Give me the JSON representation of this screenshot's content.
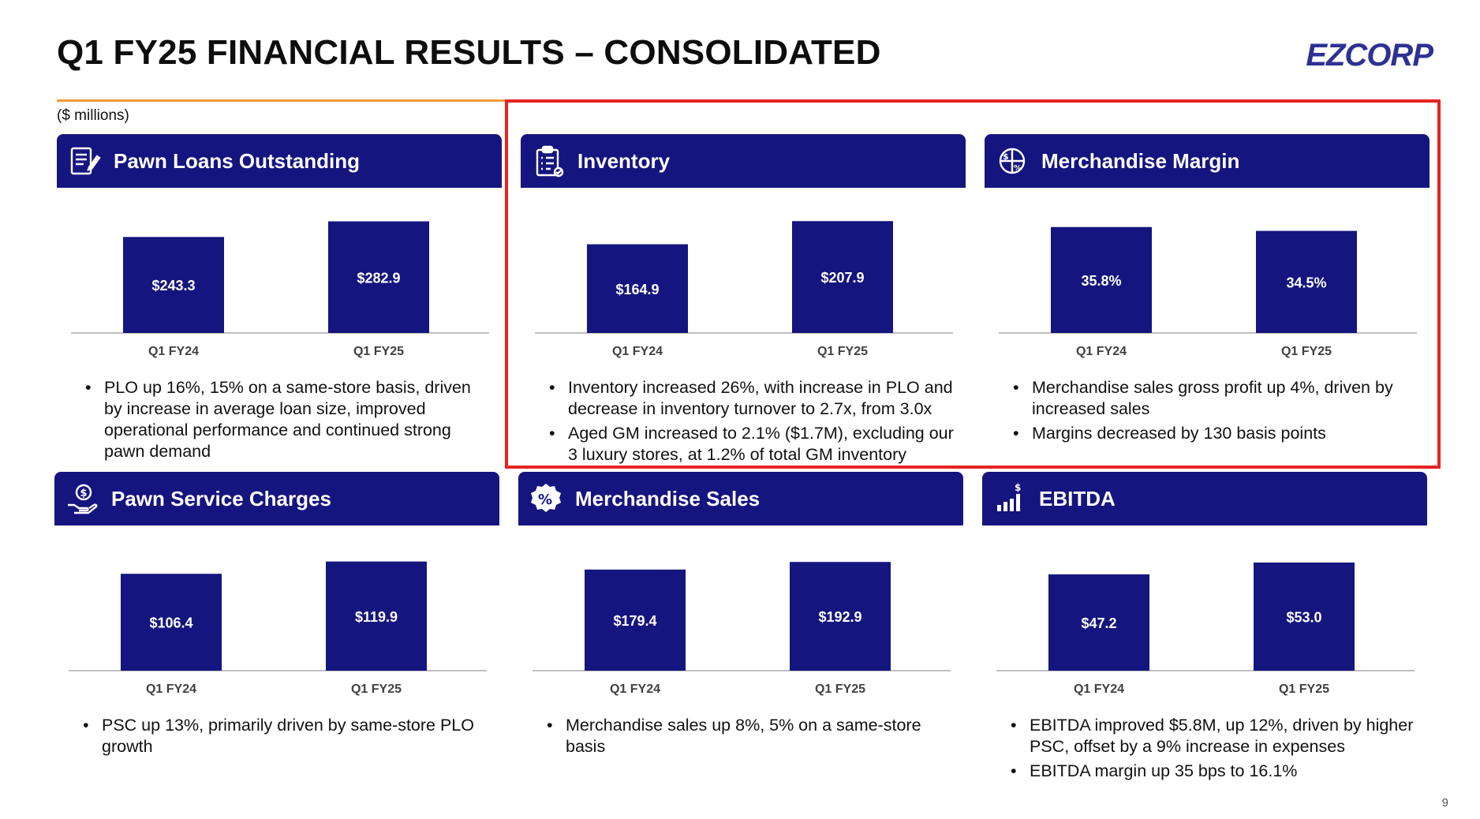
{
  "page": {
    "title": "Q1 FY25 FINANCIAL RESULTS – CONSOLIDATED",
    "logo": "EZCORP",
    "units": "($ millions)",
    "page_number": "9"
  },
  "colors": {
    "bar": "#15157f",
    "banner": "#15157f",
    "highlight": "#e52421",
    "rule": "#f39a3b"
  },
  "panels": [
    {
      "title": "Pawn Loans Outstanding",
      "icon": "loan-document-icon",
      "bullets": [
        "PLO up 16%, 15% on a same-store basis, driven by increase in average loan size, improved operational performance and continued strong pawn demand"
      ]
    },
    {
      "title": "Inventory",
      "icon": "clipboard-checklist-icon",
      "bullets": [
        "Inventory increased 26%, with increase in PLO and decrease in inventory turnover to 2.7x, from 3.0x",
        "Aged GM increased to 2.1% ($1.7M), excluding our 3 luxury stores, at 1.2% of total GM inventory"
      ]
    },
    {
      "title": "Merchandise Margin",
      "icon": "dollar-percent-gear-icon",
      "bullets": [
        "Merchandise sales gross profit up 4%, driven by increased sales",
        "Margins decreased by 130 basis points"
      ]
    },
    {
      "title": "Pawn Service Charges",
      "icon": "hand-dollar-icon",
      "bullets": [
        "PSC up 13%, primarily driven by same-store PLO growth"
      ]
    },
    {
      "title": "Merchandise Sales",
      "icon": "percent-badge-icon",
      "bullets": [
        "Merchandise sales up 8%, 5% on a same-store basis"
      ]
    },
    {
      "title": "EBITDA",
      "icon": "bar-chart-dollar-icon",
      "bullets": [
        "EBITDA improved $5.8M, up 12%, driven by higher PSC, offset by a 9% increase in expenses",
        "EBITDA margin up 35 bps to 16.1%"
      ]
    }
  ],
  "chart_data": [
    {
      "type": "bar",
      "title": "Pawn Loans Outstanding",
      "categories": [
        "Q1 FY24",
        "Q1 FY25"
      ],
      "values": [
        243.3,
        282.9
      ],
      "labels": [
        "$243.3",
        "$282.9"
      ],
      "ylim": [
        0,
        300
      ]
    },
    {
      "type": "bar",
      "title": "Inventory",
      "categories": [
        "Q1 FY24",
        "Q1 FY25"
      ],
      "values": [
        164.9,
        207.9
      ],
      "labels": [
        "$164.9",
        "$207.9"
      ],
      "ylim": [
        0,
        220
      ]
    },
    {
      "type": "bar",
      "title": "Merchandise Margin",
      "categories": [
        "Q1 FY24",
        "Q1 FY25"
      ],
      "values": [
        35.8,
        34.5
      ],
      "labels": [
        "35.8%",
        "34.5%"
      ],
      "ylim": [
        0,
        40
      ]
    },
    {
      "type": "bar",
      "title": "Pawn Service Charges",
      "categories": [
        "Q1 FY24",
        "Q1 FY25"
      ],
      "values": [
        106.4,
        119.9
      ],
      "labels": [
        "$106.4",
        "$119.9"
      ],
      "ylim": [
        0,
        130
      ]
    },
    {
      "type": "bar",
      "title": "Merchandise Sales",
      "categories": [
        "Q1 FY24",
        "Q1 FY25"
      ],
      "values": [
        179.4,
        192.9
      ],
      "labels": [
        "$179.4",
        "$192.9"
      ],
      "ylim": [
        0,
        210
      ]
    },
    {
      "type": "bar",
      "title": "EBITDA",
      "categories": [
        "Q1 FY24",
        "Q1 FY25"
      ],
      "values": [
        47.2,
        53.0
      ],
      "labels": [
        "$47.2",
        "$53.0"
      ],
      "ylim": [
        0,
        58
      ]
    }
  ]
}
